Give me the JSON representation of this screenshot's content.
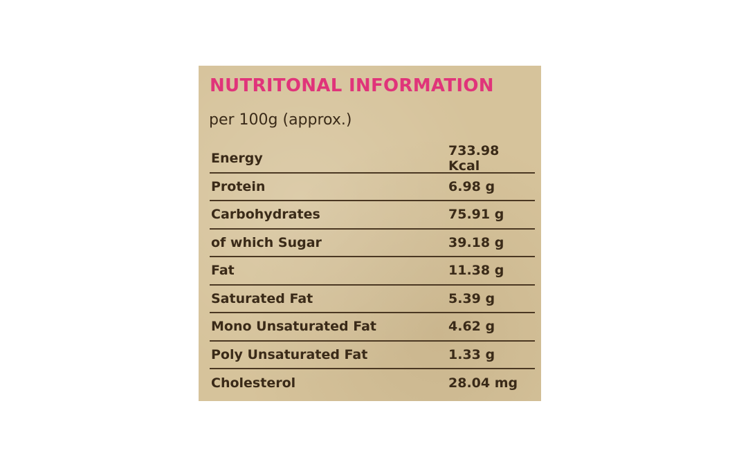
{
  "title": "NUTRITONAL INFORMATION",
  "subtitle": "per 100g (approx.)",
  "table": {
    "rows": [
      [
        "Energy",
        "733.98 Kcal"
      ],
      [
        "Protein",
        "6.98 g"
      ],
      [
        "Carbohydrates",
        "75.91 g"
      ],
      [
        "of which Sugar",
        "39.18 g"
      ],
      [
        "Fat",
        "11.38 g"
      ],
      [
        "Saturated Fat",
        "5.39 g"
      ],
      [
        "Mono Unsaturated Fat",
        "4.62 g"
      ],
      [
        "Poly Unsaturated Fat",
        "1.33 g"
      ],
      [
        "Cholesterol",
        "28.04 mg"
      ]
    ]
  }
}
